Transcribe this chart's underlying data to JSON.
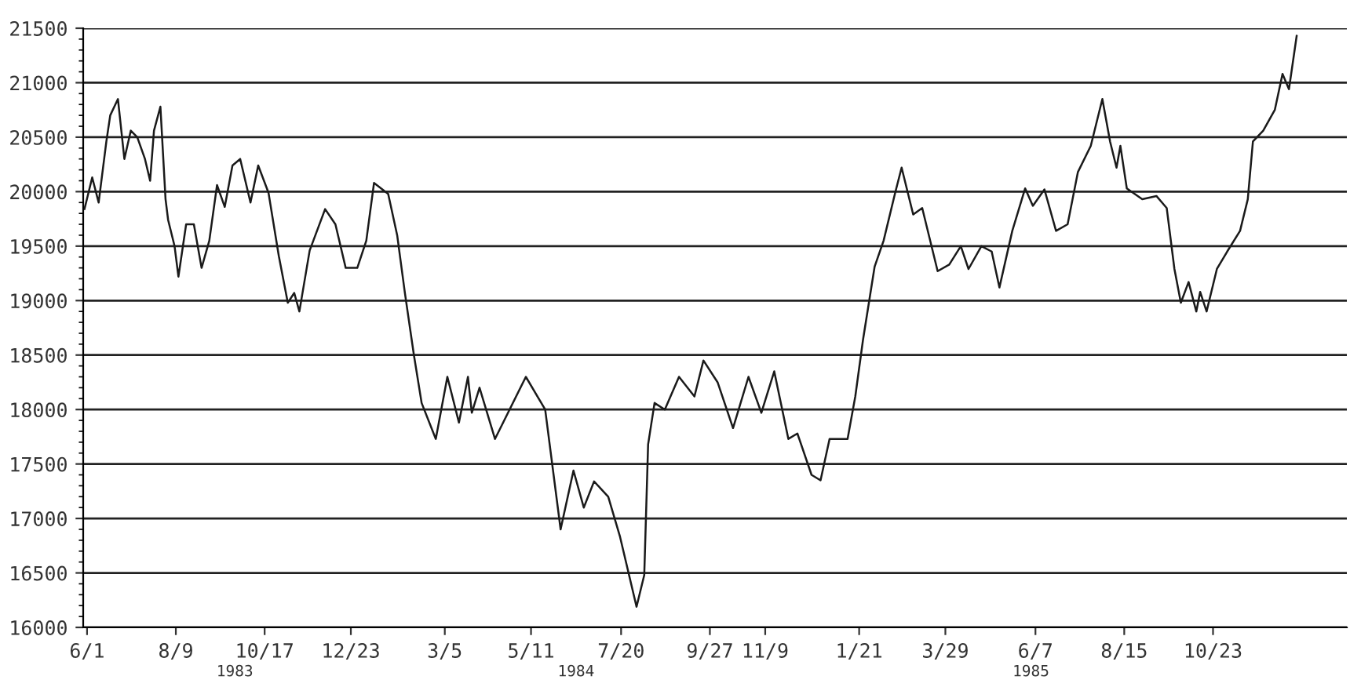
{
  "chart_data": {
    "type": "line",
    "x": [
      "1983-05-30",
      "1983-06-05",
      "1983-06-10",
      "1983-06-16",
      "1983-06-19",
      "1983-06-25",
      "1983-06-30",
      "1983-07-05",
      "1983-07-10",
      "1983-07-16",
      "1983-07-20",
      "1983-07-23",
      "1983-07-28",
      "1983-08-01",
      "1983-08-03",
      "1983-08-08",
      "1983-08-11",
      "1983-08-17",
      "1983-08-23",
      "1983-08-29",
      "1983-09-04",
      "1983-09-10",
      "1983-09-16",
      "1983-09-22",
      "1983-09-28",
      "1983-10-06",
      "1983-10-12",
      "1983-10-20",
      "1983-10-28",
      "1983-11-04",
      "1983-11-09",
      "1983-11-13",
      "1983-11-21",
      "1983-12-03",
      "1983-12-11",
      "1983-12-19",
      "1983-12-28",
      "1984-01-04",
      "1984-01-10",
      "1984-01-21",
      "1984-01-28",
      "1984-02-03",
      "1984-02-10",
      "1984-02-16",
      "1984-02-27",
      "1984-03-04",
      "1984-03-07",
      "1984-03-16",
      "1984-03-23",
      "1984-03-26",
      "1984-04-01",
      "1984-04-13",
      "1984-05-07",
      "1984-05-22",
      "1984-06-03",
      "1984-06-13",
      "1984-06-21",
      "1984-06-29",
      "1984-07-10",
      "1984-07-19",
      "1984-08-01",
      "1984-08-07",
      "1984-08-10",
      "1984-08-15",
      "1984-08-23",
      "1984-09-03",
      "1984-09-15",
      "1984-09-22",
      "1984-10-03",
      "1984-10-15",
      "1984-10-27",
      "1984-11-06",
      "1984-11-16",
      "1984-11-27",
      "1984-12-04",
      "1984-12-15",
      "1984-12-22",
      "1984-12-29",
      "1985-01-12",
      "1985-01-18",
      "1985-01-24",
      "1985-02-02",
      "1985-02-09",
      "1985-02-18",
      "1985-02-23",
      "1985-03-04",
      "1985-03-11",
      "1985-03-23",
      "1985-04-01",
      "1985-04-10",
      "1985-04-16",
      "1985-04-26",
      "1985-05-04",
      "1985-05-10",
      "1985-05-20",
      "1985-05-30",
      "1985-06-05",
      "1985-06-14",
      "1985-06-23",
      "1985-07-02",
      "1985-07-10",
      "1985-07-20",
      "1985-07-29",
      "1985-08-04",
      "1985-08-09",
      "1985-08-12",
      "1985-08-17",
      "1985-08-29",
      "1985-09-09",
      "1985-09-17",
      "1985-09-23",
      "1985-09-28",
      "1985-10-04",
      "1985-10-10",
      "1985-10-13",
      "1985-10-18",
      "1985-10-26",
      "1985-11-03",
      "1985-11-13",
      "1985-11-19",
      "1985-11-23",
      "1985-12-01",
      "1985-12-10",
      "1985-12-16",
      "1985-12-21",
      "1985-12-27"
    ],
    "values": [
      19840,
      20130,
      19900,
      20460,
      20700,
      20850,
      20300,
      20560,
      20500,
      20300,
      20100,
      20560,
      20780,
      19930,
      19740,
      19500,
      19220,
      19700,
      19700,
      19300,
      19550,
      20060,
      19860,
      20240,
      20300,
      19900,
      20240,
      19990,
      19410,
      18980,
      19070,
      18900,
      19460,
      19840,
      19700,
      19300,
      19300,
      19550,
      20080,
      19980,
      19600,
      19070,
      18500,
      18060,
      17730,
      18110,
      18300,
      17880,
      18300,
      17970,
      18200,
      17730,
      18300,
      18000,
      16900,
      17440,
      17100,
      17340,
      17200,
      16840,
      16190,
      16480,
      17680,
      18060,
      18000,
      18300,
      18120,
      18450,
      18250,
      17830,
      18300,
      17970,
      18350,
      17730,
      17780,
      17400,
      17350,
      17730,
      17730,
      18120,
      18640,
      19310,
      19550,
      19990,
      20220,
      19790,
      19850,
      19270,
      19330,
      19500,
      19290,
      19500,
      19450,
      19120,
      19640,
      20030,
      19870,
      20020,
      19640,
      19700,
      20180,
      20420,
      20850,
      20460,
      20220,
      20420,
      20030,
      19930,
      19960,
      19850,
      19290,
      18980,
      19170,
      18900,
      19080,
      18900,
      19290,
      19450,
      19640,
      19930,
      20460,
      20560,
      20750,
      21080,
      20940,
      21430
    ],
    "color": "#1a1a1a",
    "xlim": [
      "1983-05-29",
      "1986-02-04"
    ],
    "xticks": [
      {
        "value": "1983-06-01",
        "label": "6/1"
      },
      {
        "value": "1983-08-09",
        "label": "8/9"
      },
      {
        "value": "1983-10-17",
        "label": "10/17"
      },
      {
        "value": "1983-12-23",
        "label": "12/23"
      },
      {
        "value": "1984-03-05",
        "label": "3/5"
      },
      {
        "value": "1984-05-11",
        "label": "5/11"
      },
      {
        "value": "1984-07-20",
        "label": "7/20"
      },
      {
        "value": "1984-09-27",
        "label": "9/27"
      },
      {
        "value": "1984-11-09",
        "label": "11/9"
      },
      {
        "value": "1985-01-21",
        "label": "1/21"
      },
      {
        "value": "1985-03-29",
        "label": "3/29"
      },
      {
        "value": "1985-06-07",
        "label": "6/7"
      },
      {
        "value": "1985-08-15",
        "label": "8/15"
      },
      {
        "value": "1985-10-23",
        "label": "10/23"
      }
    ],
    "ylim": [
      16000,
      21500
    ],
    "yticks": [
      16000,
      16500,
      17000,
      17500,
      18000,
      18500,
      19000,
      19500,
      20000,
      20500,
      21000,
      21500
    ],
    "grid": "y",
    "annotations": [
      "1983",
      "1984",
      "1985"
    ]
  }
}
